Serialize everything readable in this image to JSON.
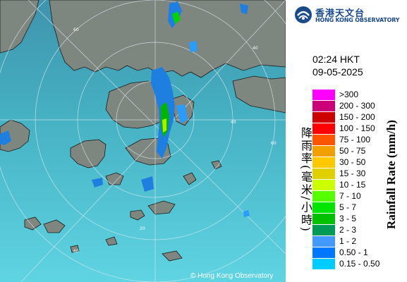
{
  "logo": {
    "chinese_name": "香港天文台",
    "english_name": "HONG KONG OBSERVATORY"
  },
  "timestamp": {
    "time": "02:24 HKT",
    "date": "09-05-2025"
  },
  "legend": {
    "title_chinese": "降雨率(毫米/小時)",
    "title_english": "Rainfall Rate (mm/h)",
    "items": [
      {
        "label": ">300",
        "color": "#ff00ff"
      },
      {
        "label": "200 - 300",
        "color": "#cc0077"
      },
      {
        "label": "150 - 200",
        "color": "#cc0000"
      },
      {
        "label": "100 - 150",
        "color": "#ff0000"
      },
      {
        "label": "75 - 100",
        "color": "#ff5500"
      },
      {
        "label": "50 - 75",
        "color": "#f2a000"
      },
      {
        "label": "30 - 50",
        "color": "#ffc800"
      },
      {
        "label": "15 - 30",
        "color": "#e0d000"
      },
      {
        "label": "10 - 15",
        "color": "#ccff00"
      },
      {
        "label": "7 - 10",
        "color": "#55ff00"
      },
      {
        "label": "5 - 7",
        "color": "#00e400"
      },
      {
        "label": "3 - 5",
        "color": "#00c000"
      },
      {
        "label": "2 - 3",
        "color": "#009955"
      },
      {
        "label": "1 - 2",
        "color": "#4499ff"
      },
      {
        "label": "0.50 - 1",
        "color": "#0077ff"
      },
      {
        "label": "0.15 - 0.50",
        "color": "#00ccff"
      }
    ]
  },
  "map": {
    "range_ring_labels": [
      "60",
      "40",
      "40",
      "20",
      "60",
      "60"
    ],
    "copyright": "© Hong Kong Observatory"
  }
}
